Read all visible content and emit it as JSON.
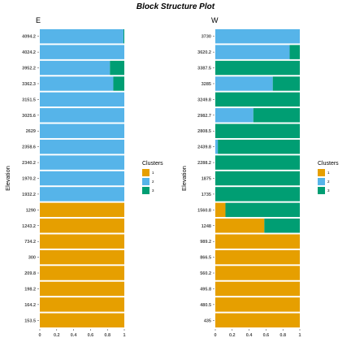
{
  "title": "Block Structure Plot",
  "colors": {
    "1": "#E69F00",
    "2": "#56B4E9",
    "3": "#009E73"
  },
  "chart_data": [
    {
      "type": "bar",
      "orientation": "horizontal",
      "stacked": true,
      "title": "E",
      "ylabel": "Elevation",
      "xlabel": "",
      "xlim": [
        0,
        1
      ],
      "x_ticks": [
        "0",
        "0.2",
        "0.4",
        "0.6",
        "0.8",
        "1"
      ],
      "categories": [
        "4094.2",
        "4024.2",
        "3952.2",
        "3362.3",
        "3151.5",
        "3025.6",
        "2629",
        "2358.6",
        "2340.2",
        "1970.2",
        "1932.2",
        "1290",
        "1243.2",
        "734.2",
        "300",
        "209.8",
        "198.2",
        "164.2",
        "153.5"
      ],
      "series": [
        {
          "name": "1",
          "values": [
            0,
            0,
            0,
            0,
            0,
            0,
            0,
            0,
            0,
            0,
            0,
            1,
            1,
            1,
            1,
            1,
            1,
            1,
            1
          ]
        },
        {
          "name": "2",
          "values": [
            0.99,
            1,
            0.83,
            0.87,
            1,
            1,
            1,
            1,
            1,
            1,
            1,
            0,
            0,
            0,
            0,
            0,
            0,
            0,
            0
          ]
        },
        {
          "name": "3",
          "values": [
            0.01,
            0,
            0.17,
            0.13,
            0,
            0,
            0,
            0,
            0,
            0,
            0,
            0,
            0,
            0,
            0,
            0,
            0,
            0,
            0
          ]
        }
      ],
      "legend": {
        "title": "Clusters",
        "position": "right",
        "labels": [
          "1",
          "2",
          "3"
        ]
      },
      "grid": false
    },
    {
      "type": "bar",
      "orientation": "horizontal",
      "stacked": true,
      "title": "W",
      "ylabel": "Elevation",
      "xlabel": "",
      "xlim": [
        0,
        1
      ],
      "x_ticks": [
        "0",
        "0.2",
        "0.4",
        "0.6",
        "0.8",
        "1"
      ],
      "categories": [
        "3730",
        "3620.2",
        "3387.5",
        "3285",
        "3249.8",
        "2982.7",
        "2808.5",
        "2439.8",
        "2288.2",
        "1875",
        "1735",
        "1560.8",
        "1248",
        "989.2",
        "866.5",
        "560.2",
        "495.8",
        "480.5",
        "435"
      ],
      "series": [
        {
          "name": "1",
          "values": [
            0,
            0,
            0,
            0,
            0,
            0,
            0,
            0,
            0,
            0,
            0,
            0.12,
            0.58,
            1,
            1,
            1,
            1,
            1,
            1
          ]
        },
        {
          "name": "2",
          "values": [
            1,
            0.88,
            0,
            0.68,
            0,
            0.45,
            0,
            0.03,
            0,
            0,
            0,
            0,
            0,
            0,
            0,
            0,
            0,
            0,
            0
          ]
        },
        {
          "name": "3",
          "values": [
            0,
            0.12,
            1,
            0.32,
            1,
            0.55,
            1,
            0.97,
            1,
            1,
            1,
            0.88,
            0.42,
            0,
            0,
            0,
            0,
            0,
            0
          ]
        }
      ],
      "legend": {
        "title": "Clusters",
        "position": "right",
        "labels": [
          "1",
          "2",
          "3"
        ]
      },
      "grid": false
    }
  ]
}
